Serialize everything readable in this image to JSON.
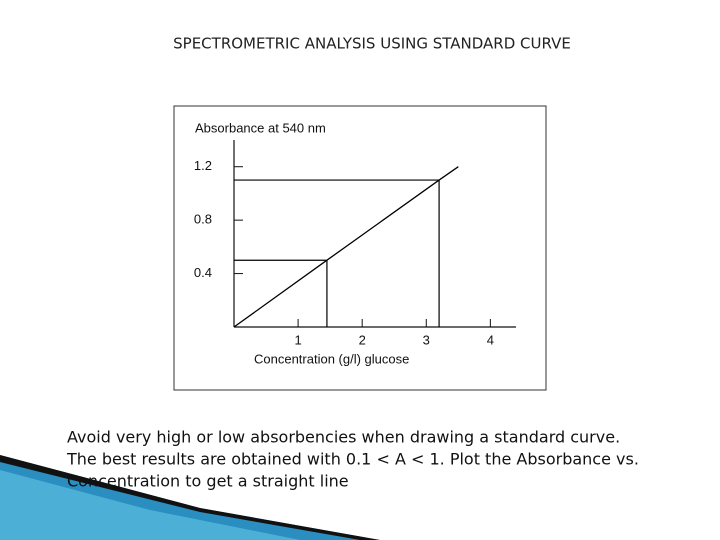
{
  "slide": {
    "title": "SPECTROMETRIC ANALYSIS USING STANDARD CURVE",
    "body": [
      "Avoid very high or low absorbencies when drawing a standard curve.",
      "The best results are obtained with 0.1 < A < 1.  Plot the Absorbance vs.",
      "Concentration to get a straight line"
    ]
  },
  "chart_data": {
    "type": "line",
    "y_label": "Absorbance at 540 nm",
    "x_label": "Concentration (g/l) glucose",
    "x": [
      0,
      1.45,
      3.2,
      3.5
    ],
    "series": [
      {
        "name": "standard curve",
        "color": "#000000",
        "values": [
          0,
          0.5,
          1.1,
          1.2
        ]
      }
    ],
    "xlim": [
      0,
      4.4
    ],
    "xticks": [
      1,
      2,
      3,
      4
    ],
    "ylim": [
      0,
      1.4
    ],
    "yticks": [
      0.4,
      0.8,
      1.2
    ],
    "grid": false
  }
}
